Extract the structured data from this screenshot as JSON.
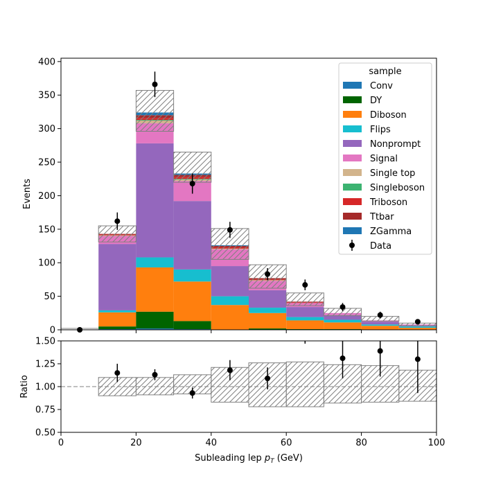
{
  "chart_data": [
    {
      "type": "bar",
      "stacked": true,
      "xlabel": "Subleading lep $p_T$ (GeV)",
      "ylabel": "Events",
      "xlim": [
        0,
        100
      ],
      "ylim": [
        0,
        405
      ],
      "x_ticks": [
        "0",
        "20",
        "40",
        "60",
        "80",
        "100"
      ],
      "y_ticks": [
        "0",
        "50",
        "100",
        "150",
        "200",
        "250",
        "300",
        "350",
        "400"
      ],
      "bin_edges": [
        0,
        10,
        20,
        30,
        40,
        50,
        60,
        70,
        80,
        90,
        100
      ],
      "legend": {
        "title": "sample",
        "placement": "top-right"
      },
      "series": [
        {
          "name": "Conv",
          "color": "#1f77b4",
          "values": [
            0,
            1,
            2,
            1,
            0,
            0,
            0,
            0,
            0,
            0
          ]
        },
        {
          "name": "DY",
          "color": "#006400",
          "values": [
            0,
            4,
            25,
            12,
            0,
            2,
            1,
            1,
            0,
            0
          ]
        },
        {
          "name": "Diboson",
          "color": "#ff7f0e",
          "values": [
            0,
            21,
            66,
            59,
            37,
            23,
            13,
            10,
            6,
            3
          ]
        },
        {
          "name": "Flips",
          "color": "#17becf",
          "values": [
            0,
            3,
            15,
            18,
            13,
            8,
            5,
            4,
            2,
            2
          ]
        },
        {
          "name": "Nonprompt",
          "color": "#9467bd",
          "values": [
            0,
            99,
            170,
            102,
            45,
            26,
            15,
            7,
            4,
            2
          ]
        },
        {
          "name": "Signal",
          "color": "#e377c2",
          "values": [
            0,
            12,
            30,
            30,
            25,
            14,
            6,
            3,
            2,
            1
          ]
        },
        {
          "name": "Single top",
          "color": "#d2b48c",
          "values": [
            0,
            1,
            4,
            2,
            1,
            1,
            0,
            0,
            0,
            0
          ]
        },
        {
          "name": "Singleboson",
          "color": "#3cb371",
          "values": [
            0,
            0,
            1,
            1,
            0,
            0,
            0,
            0,
            0,
            0
          ]
        },
        {
          "name": "Triboson",
          "color": "#d62728",
          "values": [
            0,
            1,
            3,
            3,
            2,
            1,
            1,
            0,
            0,
            0
          ]
        },
        {
          "name": "Ttbar",
          "color": "#a52a2a",
          "values": [
            0,
            1,
            4,
            3,
            2,
            2,
            1,
            0,
            0,
            0
          ]
        },
        {
          "name": "ZGamma",
          "color": "#1f77b4",
          "values": [
            0,
            0,
            4,
            2,
            1,
            0,
            0,
            0,
            0,
            0
          ]
        }
      ],
      "uncertainty_band": {
        "up": [
          0,
          155,
          357,
          265,
          151,
          97,
          55,
          32,
          20,
          10
        ],
        "down": [
          0,
          131,
          296,
          220,
          105,
          62,
          36,
          21,
          13,
          6
        ]
      },
      "data": {
        "name": "Data",
        "x": [
          5,
          15,
          25,
          35,
          45,
          55,
          65,
          75,
          85,
          95
        ],
        "y": [
          0,
          162,
          366,
          218,
          149,
          83,
          67,
          34,
          22,
          12
        ],
        "err": [
          0,
          13,
          19,
          15,
          12,
          9,
          8,
          6,
          5,
          3
        ]
      }
    },
    {
      "type": "ratio",
      "xlabel": "Subleading lep $p_T$ (GeV)",
      "ylabel": "Ratio",
      "xlim": [
        0,
        100
      ],
      "ylim": [
        0.5,
        1.5
      ],
      "x_ticks": [
        "0",
        "20",
        "40",
        "60",
        "80",
        "100"
      ],
      "y_ticks": [
        "0.50",
        "0.75",
        "1.00",
        "1.25",
        "1.50"
      ],
      "reference_line": 1.0,
      "band": {
        "up": [
          1.0,
          1.1,
          1.1,
          1.13,
          1.21,
          1.26,
          1.27,
          1.24,
          1.23,
          1.18
        ],
        "down": [
          1.0,
          0.9,
          0.91,
          0.92,
          0.83,
          0.78,
          0.78,
          0.82,
          0.83,
          0.84
        ]
      },
      "points": {
        "x": [
          15,
          25,
          35,
          45,
          55,
          65,
          75,
          85,
          95
        ],
        "y": [
          1.15,
          1.13,
          0.93,
          1.18,
          1.09,
          1.62,
          1.31,
          1.39,
          1.3
        ],
        "err": [
          0.1,
          0.06,
          0.06,
          0.11,
          0.12,
          0.15,
          0.22,
          0.28,
          0.37
        ]
      }
    }
  ]
}
